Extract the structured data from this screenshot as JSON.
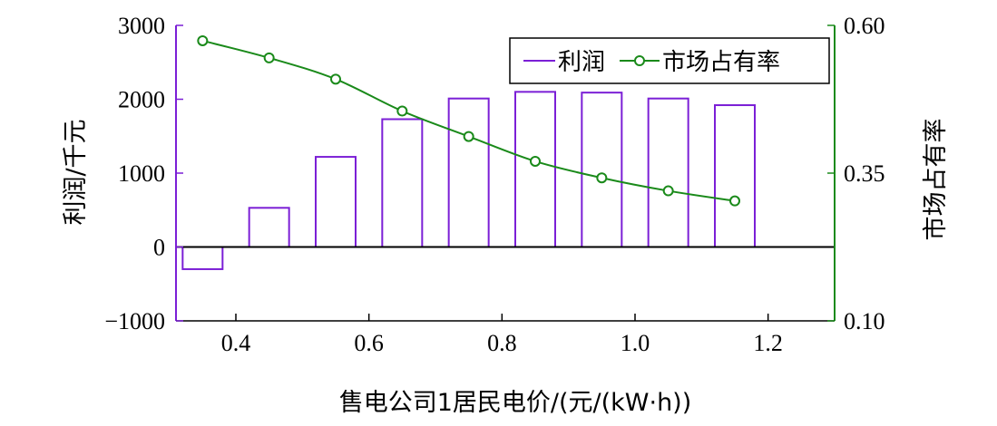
{
  "chart_data": {
    "type": "bar",
    "xlabel": "售电公司1居民电价/(元/(kW·h))",
    "ylabel_left": "利润/千元",
    "ylabel_right": "市场占有率",
    "xlim": [
      0.31,
      1.3
    ],
    "ylim_left": [
      -1000,
      3000
    ],
    "ylim_right": [
      0.1,
      0.6
    ],
    "x_ticks": [
      0.4,
      0.6,
      0.8,
      1.0,
      1.2
    ],
    "x_tick_labels": [
      "0.4",
      "0.6",
      "0.8",
      "1.0",
      "1.2"
    ],
    "y_left_ticks": [
      3000,
      2000,
      1000,
      0,
      -1000
    ],
    "y_left_tick_labels": [
      "3000",
      "2000",
      "1000",
      "0",
      "−1000"
    ],
    "y_right_ticks": [
      0.6,
      0.35,
      0.1
    ],
    "y_right_tick_labels": [
      "0.60",
      "0.35",
      "0.10"
    ],
    "bar_width": 0.06,
    "x": [
      0.35,
      0.45,
      0.55,
      0.65,
      0.75,
      0.85,
      0.95,
      1.05,
      1.15
    ],
    "series": [
      {
        "name": "利润",
        "type": "bar",
        "axis": "left",
        "color": "#7b1fd6",
        "values": [
          -300,
          530,
          1220,
          1730,
          2010,
          2100,
          2090,
          2010,
          1920
        ]
      },
      {
        "name": "市场占有率",
        "type": "line",
        "axis": "right",
        "color": "#1a8a1a",
        "values": [
          0.574,
          0.545,
          0.509,
          0.455,
          0.412,
          0.37,
          0.342,
          0.32,
          0.303
        ]
      }
    ],
    "legend_position": "top-right",
    "grid": false
  }
}
